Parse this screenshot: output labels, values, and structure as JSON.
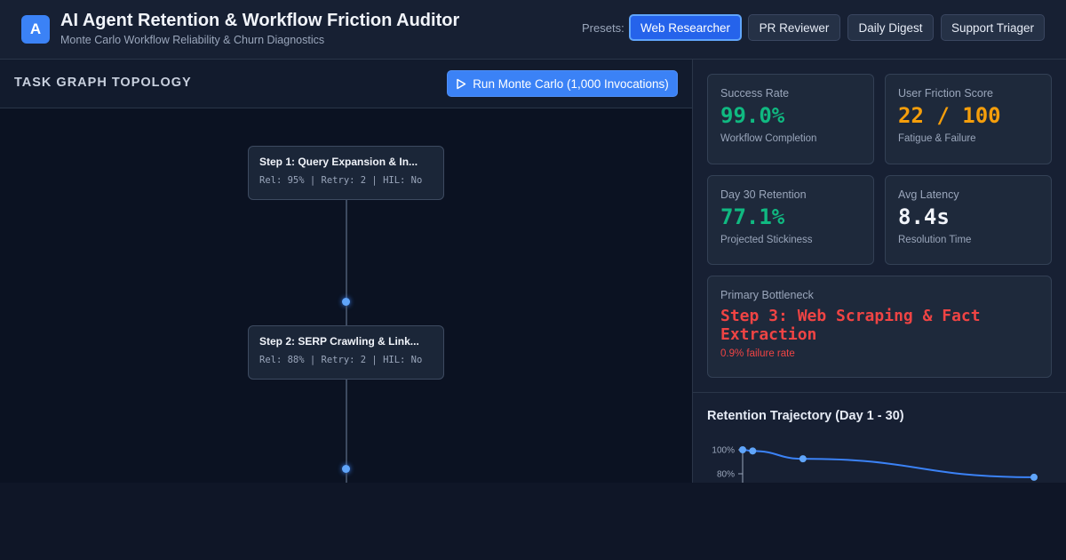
{
  "header": {
    "logo_letter": "A",
    "title": "AI Agent Retention & Workflow Friction Auditor",
    "subtitle": "Monte Carlo Workflow Reliability & Churn Diagnostics",
    "presets_label": "Presets:",
    "presets": [
      {
        "label": "Web Researcher",
        "active": true
      },
      {
        "label": "PR Reviewer",
        "active": false
      },
      {
        "label": "Daily Digest",
        "active": false
      },
      {
        "label": "Support Triager",
        "active": false
      }
    ]
  },
  "topology": {
    "title": "TASK GRAPH TOPOLOGY",
    "run_button": "Run Monte Carlo (1,000 Invocations)",
    "nodes": [
      {
        "title": "Step 1: Query Expansion & In...",
        "meta": "Rel: 95% | Retry: 2 | HIL: No"
      },
      {
        "title": "Step 2: SERP Crawling & Link...",
        "meta": "Rel: 88% | Retry: 2 | HIL: No"
      }
    ]
  },
  "metrics": {
    "success_rate": {
      "label": "Success Rate",
      "value": "99.0%",
      "sub": "Workflow Completion"
    },
    "friction": {
      "label": "User Friction Score",
      "value": "22 / 100",
      "sub": "Fatigue & Failure"
    },
    "retention": {
      "label": "Day 30 Retention",
      "value": "77.1%",
      "sub": "Projected Stickiness"
    },
    "latency": {
      "label": "Avg Latency",
      "value": "8.4s",
      "sub": "Resolution Time"
    },
    "bottleneck": {
      "label": "Primary Bottleneck",
      "value": "Step 3: Web Scraping & Fact Extraction",
      "sub": "0.9% failure rate"
    }
  },
  "colors": {
    "accent": "#3b82f6",
    "success": "#10b981",
    "warning": "#f59e0b",
    "danger": "#ef4444"
  },
  "chart_data": {
    "type": "line",
    "title": "Retention Trajectory (Day 1 - 30)",
    "y_tick_labels": [
      "100%",
      "80%"
    ],
    "x": [
      1,
      2,
      7,
      30
    ],
    "values": [
      100,
      99,
      92.5,
      77.1
    ],
    "xlim": [
      1,
      30
    ],
    "ylim": [
      80,
      100
    ],
    "grid": false
  }
}
